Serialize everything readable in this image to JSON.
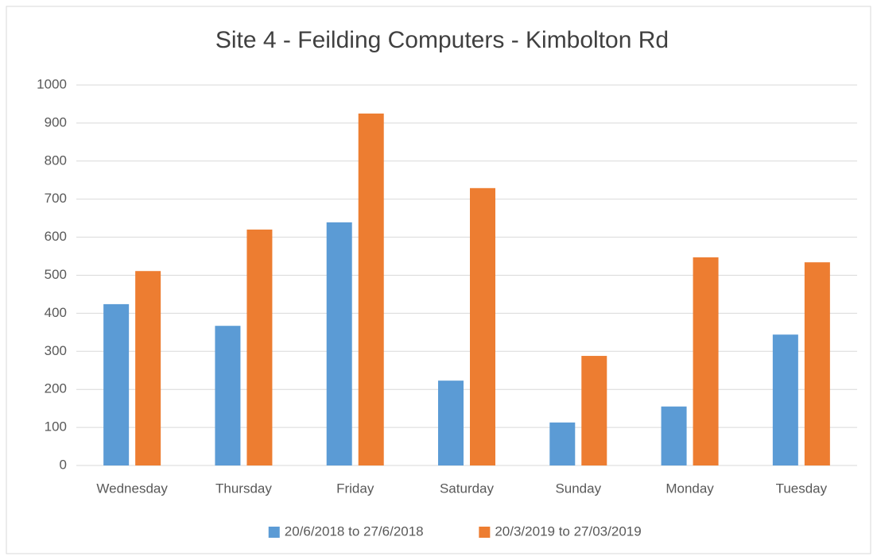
{
  "chart_data": {
    "type": "bar",
    "title": "Site 4 - Feilding Computers - Kimbolton Rd",
    "categories": [
      "Wednesday",
      "Thursday",
      "Friday",
      "Saturday",
      "Sunday",
      "Monday",
      "Tuesday"
    ],
    "series": [
      {
        "name": "20/6/2018 to 27/6/2018",
        "color": "#5b9bd5",
        "values": [
          424,
          367,
          639,
          223,
          113,
          155,
          344
        ]
      },
      {
        "name": "20/3/2019 to 27/03/2019",
        "color": "#ed7d31",
        "values": [
          511,
          620,
          925,
          729,
          288,
          547,
          534
        ]
      }
    ],
    "ylim": [
      0,
      1000
    ],
    "yticks": [
      0,
      100,
      200,
      300,
      400,
      500,
      600,
      700,
      800,
      900,
      1000
    ],
    "grid": true,
    "legend": "bottom"
  }
}
